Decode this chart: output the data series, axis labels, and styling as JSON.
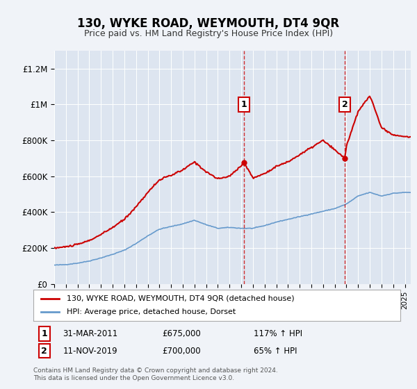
{
  "title": "130, WYKE ROAD, WEYMOUTH, DT4 9QR",
  "subtitle": "Price paid vs. HM Land Registry's House Price Index (HPI)",
  "footnote": "Contains HM Land Registry data © Crown copyright and database right 2024.\nThis data is licensed under the Open Government Licence v3.0.",
  "legend_line1": "130, WYKE ROAD, WEYMOUTH, DT4 9QR (detached house)",
  "legend_line2": "HPI: Average price, detached house, Dorset",
  "annotation1": {
    "label": "1",
    "date_str": "31-MAR-2011",
    "price_str": "£675,000",
    "hpi_str": "117% ↑ HPI",
    "year": 2011.25
  },
  "annotation2": {
    "label": "2",
    "date_str": "11-NOV-2019",
    "price_str": "£700,000",
    "hpi_str": "65% ↑ HPI",
    "year": 2019.86
  },
  "sale1_price": 675000,
  "sale2_price": 700000,
  "ylim": [
    0,
    1300000
  ],
  "xlim_start": 1995,
  "xlim_end": 2025.5,
  "background_color": "#e8eef7",
  "plot_bg_color": "#dde6f0",
  "red_line_color": "#cc0000",
  "blue_line_color": "#6699cc",
  "red_dashed_color": "#cc0000",
  "yticks": [
    0,
    200000,
    400000,
    600000,
    800000,
    1000000,
    1200000
  ],
  "ytick_labels": [
    "£0",
    "£200K",
    "£400K",
    "£600K",
    "£800K",
    "£1M",
    "£1.2M"
  ]
}
